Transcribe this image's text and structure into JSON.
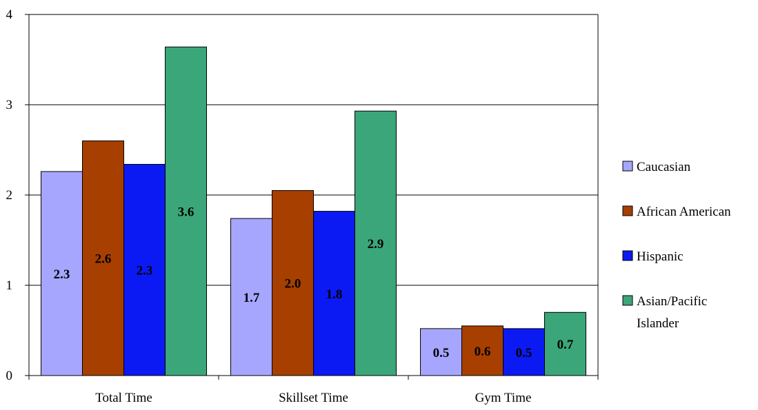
{
  "chart_data": {
    "type": "bar",
    "title": "",
    "xlabel": "",
    "ylabel": "",
    "ylim": [
      0,
      4
    ],
    "yticks": [
      "0",
      "1",
      "2",
      "3",
      "4"
    ],
    "grid": true,
    "legend_position": "right",
    "categories": [
      "Total Time",
      "Skillset Time",
      "Gym Time"
    ],
    "series": [
      {
        "name": "Caucasian",
        "color": "#A6A6FF",
        "values": [
          2.26,
          1.74,
          0.52
        ],
        "labels": [
          "2.3",
          "1.7",
          "0.5"
        ]
      },
      {
        "name": "African American",
        "color": "#A63F00",
        "values": [
          2.6,
          2.05,
          0.55
        ],
        "labels": [
          "2.6",
          "2.0",
          "0.6"
        ]
      },
      {
        "name": "Hispanic",
        "color": "#0B1AF2",
        "values": [
          2.34,
          1.82,
          0.52
        ],
        "labels": [
          "2.3",
          "1.8",
          "0.5"
        ]
      },
      {
        "name": "Asian/Pacific Islander",
        "legend_lines": [
          "Asian/Pacific",
          "Islander"
        ],
        "color": "#3BA679",
        "values": [
          3.64,
          2.93,
          0.7
        ],
        "labels": [
          "3.6",
          "2.9",
          "0.7"
        ]
      }
    ]
  }
}
